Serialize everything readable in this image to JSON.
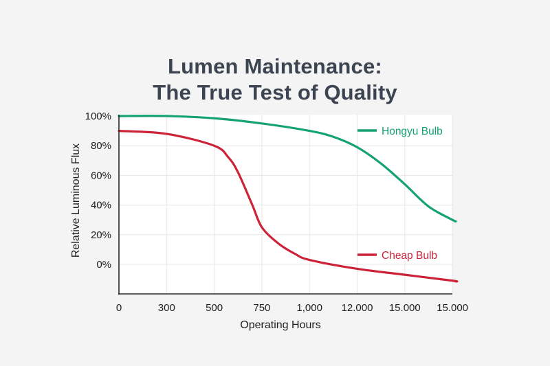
{
  "title": {
    "line1": "Lumen Maintenance:",
    "line2": "The True Test of Quality"
  },
  "colors": {
    "background": "#f4f4f4",
    "plot_background": "#ffffff",
    "grid": "#e6e6e6",
    "axis": "#2a2a2a",
    "title": "#3b4450",
    "hongyu": "#15a271",
    "cheap": "#cc2339"
  },
  "chart_data": {
    "type": "line",
    "title": "Lumen Maintenance: The True Test of Quality",
    "xlabel": "Operating Hours",
    "ylabel": "Relative Luminous Flux",
    "x_tick_labels": [
      "0",
      "300",
      "500",
      "750",
      "1,000",
      "12.000",
      "15.000",
      "15.000"
    ],
    "y_tick_labels": [
      "100%",
      "80%",
      "60%",
      "40%",
      "20%",
      "0%"
    ],
    "y_ticks": [
      100,
      80,
      60,
      40,
      20,
      0
    ],
    "ylim": [
      -20,
      100
    ],
    "grid": true,
    "legend_position": "inline-right",
    "x_positions_note": "x values given as tick-index positions (0 = '0', 7 = last '15.000')",
    "series": [
      {
        "name": "Hongyu Bulb",
        "color": "#15a271",
        "x": [
          0,
          1,
          2,
          3,
          4,
          4.5,
          5,
          5.5,
          6,
          6.5,
          7,
          7.07
        ],
        "values": [
          100,
          100,
          98.5,
          95,
          90,
          86,
          79,
          68,
          54,
          39,
          30,
          29
        ]
      },
      {
        "name": "Cheap Bulb",
        "color": "#cc2339",
        "x": [
          0,
          1,
          2,
          2.3,
          2.5,
          2.8,
          3,
          3.35,
          3.7,
          4,
          5,
          6,
          7,
          7.07
        ],
        "values": [
          90,
          88,
          80,
          72,
          62,
          40,
          25,
          14,
          7,
          3,
          -3,
          -7,
          -11,
          -11.5
        ]
      }
    ],
    "legend": [
      {
        "label": "Hongyu Bulb",
        "color": "#15a271"
      },
      {
        "label": "Cheap Bulb",
        "color": "#cc2339"
      }
    ]
  }
}
